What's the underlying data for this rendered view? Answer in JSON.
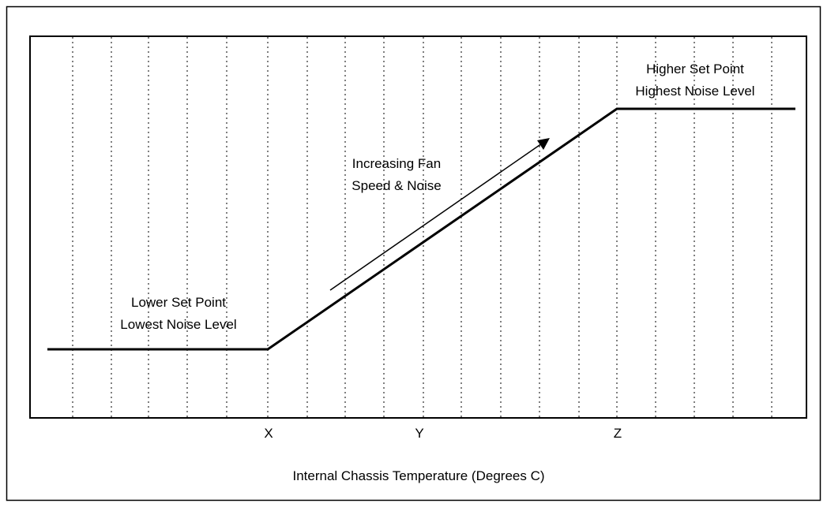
{
  "annotations": {
    "lower": [
      "Lower Set Point",
      "Lowest Noise Level"
    ],
    "higher": [
      "Higher Set Point",
      "Highest Noise Level"
    ],
    "increasing": [
      "Increasing Fan",
      "Speed & Noise"
    ]
  },
  "x_ticks": [
    "X",
    "Y",
    "Z"
  ],
  "x_axis_label": "Internal Chassis Temperature (Degrees C)"
}
